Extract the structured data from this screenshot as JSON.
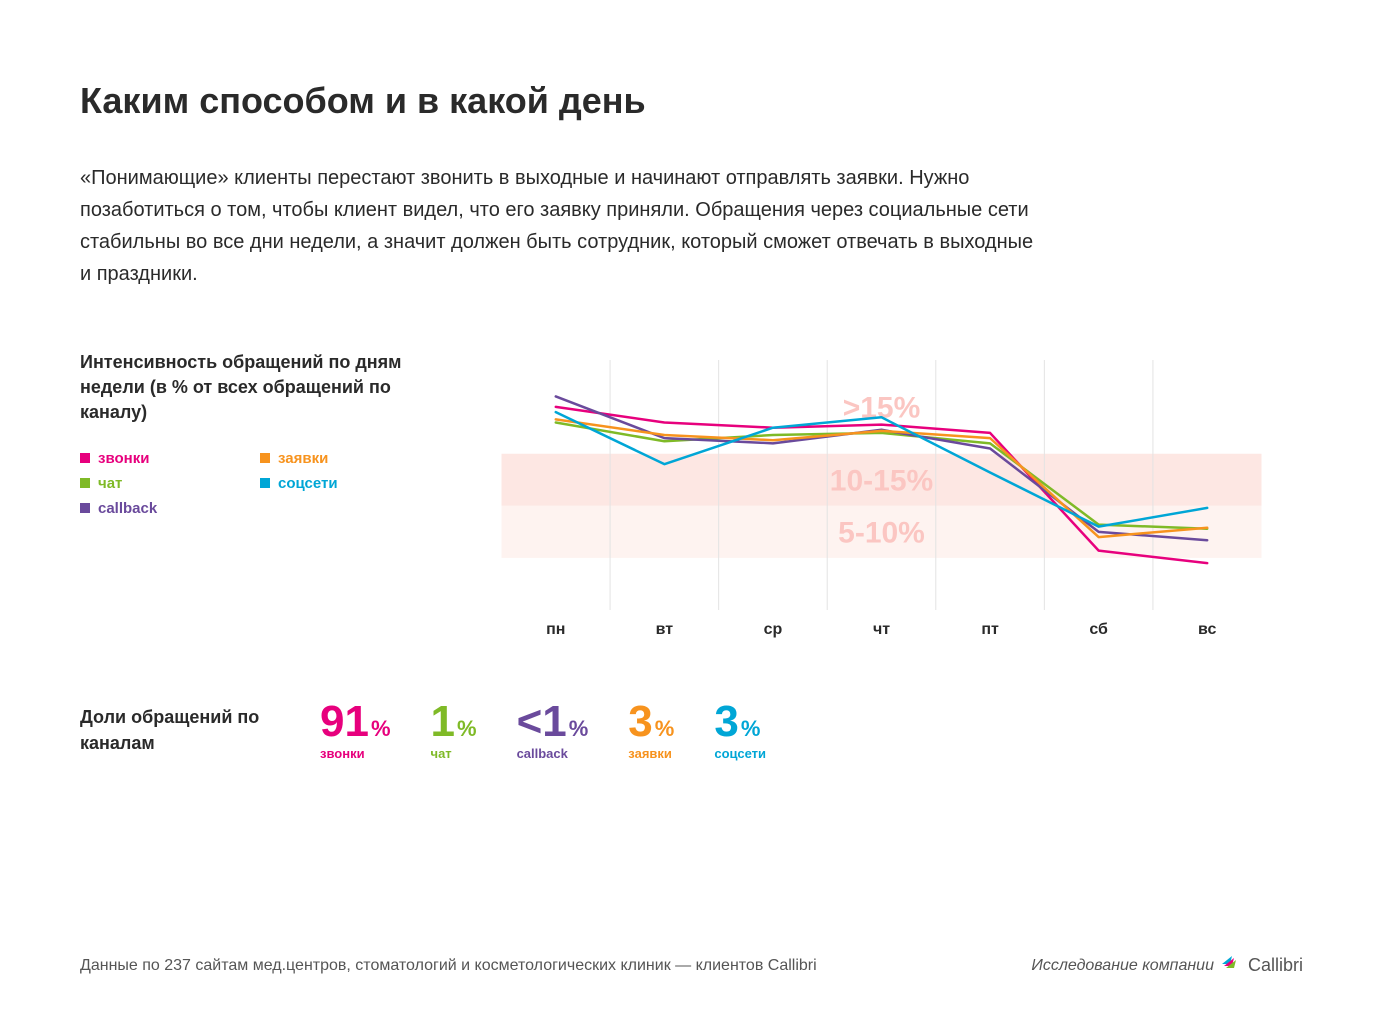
{
  "title": "Каким способом и в какой день",
  "description": "«Понимающие» клиенты перестают звонить в выходные и начинают отправлять заявки. Нужно позаботиться о том, чтобы клиент видел, что его заявку приняли. Обращения через социальные сети стабильны во все дни недели, а значит должен быть сотрудник, который сможет отвечать в выходные и праздники.",
  "chart": {
    "type": "line",
    "title": "Интенсивность обращений по дням недели (в % от всех обращений по каналу)",
    "categories": [
      "пн",
      "вт",
      "ср",
      "чт",
      "пт",
      "сб",
      "вс"
    ],
    "y_max": 24,
    "y_min": 0,
    "bands": [
      {
        "from": 15,
        "to": 24,
        "label": ">15%",
        "color": "#ffffff",
        "label_color": "#fbc6c2"
      },
      {
        "from": 10,
        "to": 15,
        "label": "10-15%",
        "color": "#fde7e3",
        "label_color": "#fbc6c2"
      },
      {
        "from": 5,
        "to": 10,
        "label": "5-10%",
        "color": "#fef3f0",
        "label_color": "#fbc6c2"
      }
    ],
    "grid_color": "#e3e3e3",
    "band_label_fontsize": 30,
    "xtick_fontsize": 16,
    "line_width": 2.5,
    "series": [
      {
        "key": "calls",
        "label": "звонки",
        "color": "#e7007d",
        "values": [
          19.5,
          18.0,
          17.5,
          17.8,
          17.0,
          5.7,
          4.5
        ]
      },
      {
        "key": "chat",
        "label": "чат",
        "color": "#7fba27",
        "values": [
          18.0,
          16.2,
          16.8,
          17.0,
          16.0,
          8.2,
          7.8
        ]
      },
      {
        "key": "callback",
        "label": "callback",
        "color": "#6a4a9c",
        "values": [
          20.5,
          16.5,
          16.0,
          17.3,
          15.5,
          7.5,
          6.7
        ]
      },
      {
        "key": "requests",
        "label": "заявки",
        "color": "#f7931e",
        "values": [
          18.3,
          16.8,
          16.3,
          17.2,
          16.5,
          7.0,
          7.9
        ]
      },
      {
        "key": "social",
        "label": "соцсети",
        "color": "#00a6d6",
        "values": [
          19.0,
          14.0,
          17.5,
          18.5,
          13.2,
          8.0,
          9.8
        ]
      }
    ],
    "legend_order": [
      "calls",
      "requests",
      "chat",
      "social",
      "callback"
    ]
  },
  "shares": {
    "title": "Доли обращений по каналам",
    "items": [
      {
        "value": "91",
        "unit": "%",
        "label": "звонки",
        "color": "#e7007d"
      },
      {
        "value": "1",
        "unit": "%",
        "label": "чат",
        "color": "#7fba27"
      },
      {
        "value": "<1",
        "unit": "%",
        "label": "callback",
        "color": "#6a4a9c"
      },
      {
        "value": "3",
        "unit": "%",
        "label": "заявки",
        "color": "#f7931e"
      },
      {
        "value": "3",
        "unit": "%",
        "label": "соцсети",
        "color": "#00a6d6"
      }
    ]
  },
  "footer": {
    "left": "Данные по 237 сайтам мед.центров, стоматологий и косметологических клиник  — клиентов Callibri",
    "right_prefix": "Исследование компании",
    "logo_text": "Callibri",
    "logo_colors": {
      "a": "#00a6d6",
      "b": "#e7007d",
      "c": "#7fba27"
    }
  }
}
